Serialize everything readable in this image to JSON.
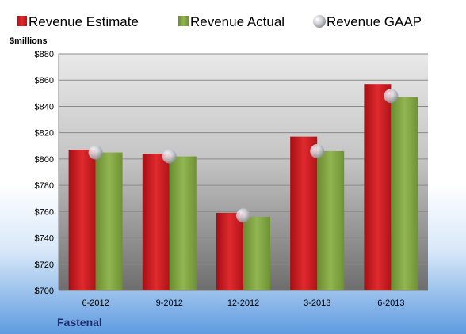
{
  "chart_data": {
    "type": "bar",
    "categories": [
      "6-2012",
      "9-2012",
      "12-2012",
      "3-2013",
      "6-2013"
    ],
    "series": [
      {
        "name": "Revenue Estimate",
        "values": [
          807,
          804,
          759,
          817,
          857
        ],
        "color": "#c8171e"
      },
      {
        "name": "Revenue Actual",
        "values": [
          805,
          802,
          756,
          806,
          847
        ],
        "color": "#7ea13f"
      },
      {
        "name": "Revenue GAAP",
        "values": [
          805,
          802,
          757,
          806,
          848
        ],
        "color": "#c0c0c8",
        "marker": "circle"
      }
    ],
    "ylabel": "$millions",
    "ylim": [
      700,
      880
    ],
    "yticks": [
      700,
      720,
      740,
      760,
      780,
      800,
      820,
      840,
      860,
      880
    ],
    "ytick_labels": [
      "$700",
      "$720",
      "$740",
      "$760",
      "$780",
      "$800",
      "$820",
      "$840",
      "$860",
      "$880"
    ],
    "grid": true,
    "legend_position": "top"
  },
  "footer": {
    "company": "Fastenal"
  }
}
